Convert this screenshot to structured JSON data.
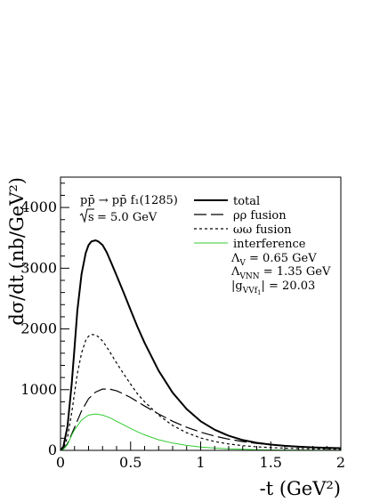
{
  "chart_data": {
    "type": "line",
    "xlabel": "-t (GeV²)",
    "ylabel": "dσ/dt (nb/GeV²)",
    "xlim": [
      0,
      2
    ],
    "ylim": [
      0,
      4500
    ],
    "x_ticks": [
      0,
      0.5,
      1,
      1.5,
      2
    ],
    "x_tick_labels": [
      "0",
      "0.5",
      "1",
      "1.5",
      "2"
    ],
    "y_ticks": [
      0,
      1000,
      2000,
      3000,
      4000
    ],
    "y_tick_labels": [
      "0",
      "1000",
      "2000",
      "3000",
      "4000"
    ],
    "grid": false,
    "legend_position": "top-right",
    "annotations": {
      "process": "pp̄ → pp̄ f₁(1285)",
      "energy_sqrt": "s",
      "energy_value": "= 5.0 GeV",
      "lambda_v_label": "Λ",
      "lambda_v_sub": "V",
      "lambda_v_value": " = 0.65 GeV",
      "lambda_vnn_label": "Λ",
      "lambda_vnn_sub": "VNN",
      "lambda_vnn_value": " = 1.35 GeV",
      "coupling_label": "|g",
      "coupling_sub": "VVf",
      "coupling_subsub": "1",
      "coupling_value": "| = 20.03"
    },
    "series": [
      {
        "name": "total",
        "color": "#000000",
        "style": "solid",
        "width": 2,
        "x": [
          0.0,
          0.02,
          0.05,
          0.08,
          0.1,
          0.12,
          0.15,
          0.18,
          0.2,
          0.22,
          0.25,
          0.27,
          0.3,
          0.33,
          0.36,
          0.4,
          0.45,
          0.5,
          0.55,
          0.6,
          0.7,
          0.8,
          0.9,
          1.0,
          1.1,
          1.2,
          1.3,
          1.4,
          1.5,
          1.6,
          1.7,
          1.8,
          1.9,
          2.0
        ],
        "values": [
          0,
          60,
          400,
          1100,
          1700,
          2300,
          2900,
          3250,
          3380,
          3440,
          3460,
          3440,
          3380,
          3260,
          3100,
          2880,
          2600,
          2310,
          2030,
          1770,
          1310,
          950,
          680,
          480,
          340,
          240,
          170,
          125,
          95,
          75,
          60,
          50,
          42,
          36
        ]
      },
      {
        "name": "ρρ fusion",
        "color": "#000000",
        "style": "longdash",
        "width": 1.2,
        "x": [
          0.0,
          0.02,
          0.05,
          0.1,
          0.15,
          0.2,
          0.25,
          0.3,
          0.35,
          0.4,
          0.45,
          0.5,
          0.55,
          0.6,
          0.7,
          0.8,
          0.9,
          1.0,
          1.1,
          1.2,
          1.3,
          1.4,
          1.5,
          1.6,
          1.7,
          1.8,
          1.9,
          2.0
        ],
        "values": [
          0,
          20,
          110,
          380,
          650,
          850,
          960,
          1010,
          1010,
          980,
          930,
          870,
          800,
          730,
          600,
          480,
          380,
          300,
          235,
          185,
          145,
          115,
          92,
          75,
          62,
          52,
          44,
          38
        ]
      },
      {
        "name": "ωω fusion",
        "color": "#000000",
        "style": "dotted",
        "width": 1.2,
        "x": [
          0.0,
          0.02,
          0.05,
          0.08,
          0.1,
          0.12,
          0.15,
          0.18,
          0.2,
          0.22,
          0.25,
          0.27,
          0.3,
          0.33,
          0.36,
          0.4,
          0.45,
          0.5,
          0.55,
          0.6,
          0.7,
          0.8,
          0.9,
          1.0,
          1.1,
          1.2,
          1.3,
          1.4,
          1.5,
          1.6,
          1.7,
          1.8,
          1.9,
          2.0
        ],
        "values": [
          0,
          30,
          220,
          620,
          950,
          1260,
          1600,
          1810,
          1880,
          1910,
          1900,
          1870,
          1800,
          1700,
          1590,
          1440,
          1260,
          1090,
          930,
          800,
          580,
          410,
          290,
          205,
          145,
          105,
          78,
          58,
          45,
          36,
          30,
          25,
          21,
          18
        ]
      },
      {
        "name": "interference",
        "color": "#33cc33",
        "style": "solid",
        "width": 1,
        "x": [
          0.0,
          0.02,
          0.05,
          0.08,
          0.1,
          0.15,
          0.2,
          0.25,
          0.3,
          0.35,
          0.4,
          0.45,
          0.5,
          0.55,
          0.6,
          0.7,
          0.8,
          0.9,
          1.0,
          1.1,
          1.2,
          1.3,
          1.4,
          1.5,
          1.6,
          1.8,
          2.0
        ],
        "values": [
          0,
          15,
          95,
          250,
          340,
          500,
          580,
          600,
          580,
          540,
          480,
          420,
          360,
          305,
          255,
          175,
          120,
          82,
          55,
          38,
          26,
          18,
          12,
          8,
          6,
          3,
          2
        ]
      }
    ]
  }
}
